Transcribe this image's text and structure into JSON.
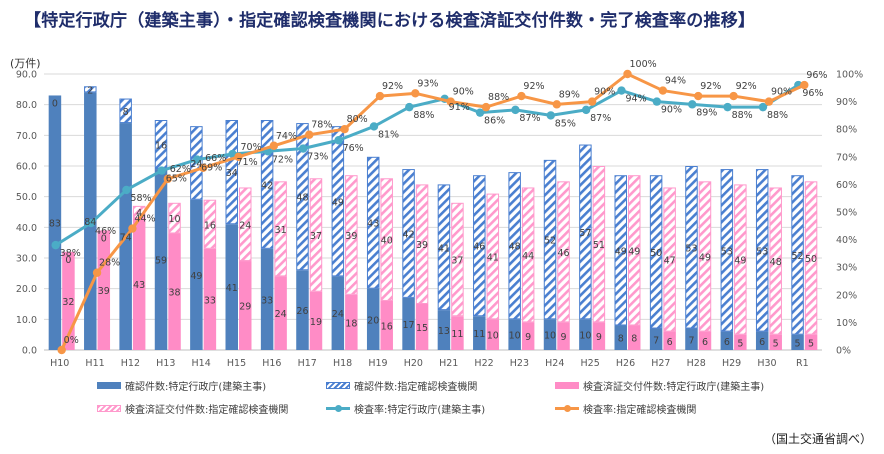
{
  "title": "【特定行政庁（建築主事）・指定確認検査機関における検査済証交付件数・完了検査率の推移】",
  "unit_label": "(万件)",
  "source": "（国土交通省調べ）",
  "colors": {
    "solid_blue": "#4f81bd",
    "hatch_blue": "#4a7fd0",
    "solid_pink": "#ff8cc6",
    "hatch_pink": "#ff99cc",
    "line_teal": "#4bacc6",
    "line_orange": "#f79646"
  },
  "chart_data": {
    "type": "bar",
    "title": "【特定行政庁（建築主事）・指定確認検査機関における検査済証交付件数・完了検査率の推移】",
    "ylabel": "(万件)",
    "ylim": [
      0,
      90
    ],
    "yticks": [
      "0.0",
      "10.0",
      "20.0",
      "30.0",
      "40.0",
      "50.0",
      "60.0",
      "70.0",
      "80.0",
      "90.0"
    ],
    "y2lim": [
      0,
      100
    ],
    "y2ticks": [
      "0%",
      "10%",
      "20%",
      "30%",
      "40%",
      "50%",
      "60%",
      "70%",
      "80%",
      "90%",
      "100%"
    ],
    "grid": true,
    "legend_position": "bottom",
    "categories": [
      "H10",
      "H11",
      "H12",
      "H13",
      "H14",
      "H15",
      "H16",
      "H17",
      "H18",
      "H19",
      "H20",
      "H21",
      "H22",
      "H23",
      "H24",
      "H25",
      "H26",
      "H27",
      "H28",
      "H29",
      "H30",
      "R1"
    ],
    "series": [
      {
        "name": "確認件数:特定行政庁(建築主事)",
        "kind": "stacked-bar-left-bottom",
        "values": [
          83,
          84,
          74,
          59,
          49,
          41,
          33,
          26,
          24,
          20,
          17,
          13,
          11,
          10,
          10,
          10,
          8,
          7,
          7,
          6,
          6,
          5
        ]
      },
      {
        "name": "確認件数:指定確認検査機関",
        "kind": "stacked-bar-left-top",
        "values": [
          0,
          2,
          8,
          16,
          24,
          34,
          42,
          48,
          49,
          43,
          42,
          41,
          46,
          48,
          52,
          57,
          49,
          50,
          53,
          53,
          53,
          52
        ]
      },
      {
        "name": "検査済証交付件数:特定行政庁(建築主事)",
        "kind": "stacked-bar-right-bottom",
        "values": [
          32,
          39,
          43,
          38,
          33,
          29,
          24,
          19,
          18,
          16,
          15,
          11,
          10,
          9,
          9,
          9,
          8,
          6,
          6,
          5,
          5,
          5
        ]
      },
      {
        "name": "検査済証交付件数:指定確認検査機関",
        "kind": "stacked-bar-right-top",
        "values": [
          0,
          0,
          4,
          10,
          16,
          24,
          31,
          37,
          39,
          40,
          39,
          37,
          41,
          44,
          46,
          51,
          49,
          47,
          49,
          49,
          48,
          50
        ]
      },
      {
        "name": "検査率:特定行政庁(建築主事)",
        "kind": "line-right-axis",
        "values": [
          38,
          46,
          58,
          65,
          69,
          71,
          72,
          73,
          76,
          81,
          88,
          91,
          86,
          87,
          85,
          87,
          94,
          90,
          89,
          88,
          88,
          96
        ]
      },
      {
        "name": "検査率:指定確認検査機関",
        "kind": "line-right-axis",
        "values": [
          0,
          28,
          44,
          62,
          66,
          70,
          74,
          78,
          80,
          92,
          93,
          90,
          88,
          92,
          89,
          90,
          100,
          94,
          92,
          92,
          90,
          96
        ]
      }
    ]
  },
  "legend": [
    {
      "label": "確認件数:特定行政庁(建築主事)",
      "style": "solid-blue"
    },
    {
      "label": "確認件数:指定確認検査機関",
      "style": "hatch-blue"
    },
    {
      "label": "検査済証交付件数:特定行政庁(建築主事)",
      "style": "solid-pink"
    },
    {
      "label": "検査済証交付件数:指定確認検査機関",
      "style": "hatch-pink"
    },
    {
      "label": "検査率:特定行政庁(建築主事)",
      "style": "line-teal"
    },
    {
      "label": "検査率:指定確認検査機関",
      "style": "line-orange"
    }
  ]
}
